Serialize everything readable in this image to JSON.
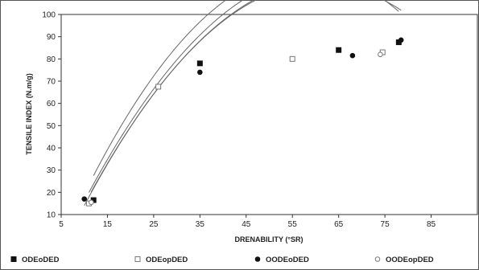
{
  "chart_data": {
    "type": "scatter",
    "title": "",
    "xlabel": "DRENABILITY (°SR)",
    "ylabel": "TENSILE INDEX (N.m/g)",
    "xlim": [
      5,
      95
    ],
    "ylim": [
      10,
      100
    ],
    "x_ticks": [
      "5",
      "15",
      "25",
      "35",
      "45",
      "55",
      "65",
      "75",
      "85"
    ],
    "y_ticks": [
      "10",
      "20",
      "30",
      "40",
      "50",
      "60",
      "70",
      "80",
      "90",
      "100"
    ],
    "grid": false,
    "legend_position": "bottom",
    "series": [
      {
        "name": "ODEoDED",
        "marker": "filled-square",
        "points": [
          [
            12,
            16.5
          ],
          [
            35,
            78
          ],
          [
            65,
            84
          ],
          [
            78,
            87.5
          ]
        ],
        "fit": [
          -27,
          5.07,
          -0.0439
        ]
      },
      {
        "name": "ODEopDED",
        "marker": "open-square",
        "points": [
          [
            11,
            15
          ],
          [
            26,
            67.5
          ],
          [
            55,
            80
          ],
          [
            74.5,
            83
          ]
        ],
        "fit": [
          -27,
          4.68,
          -0.0376
        ]
      },
      {
        "name": "OODEoDED",
        "marker": "filled-circle",
        "points": [
          [
            10,
            17
          ],
          [
            35,
            74
          ],
          [
            68,
            81.5
          ],
          [
            78.5,
            88.5
          ]
        ],
        "fit": [
          -29,
          4.69,
          -0.0385
        ]
      },
      {
        "name": "OODEopDED",
        "marker": "open-circle",
        "points": [
          [
            11.5,
            15.5
          ],
          [
            74,
            82
          ]
        ],
        "fit": [
          -28,
          4.62,
          -0.0372
        ]
      }
    ]
  }
}
